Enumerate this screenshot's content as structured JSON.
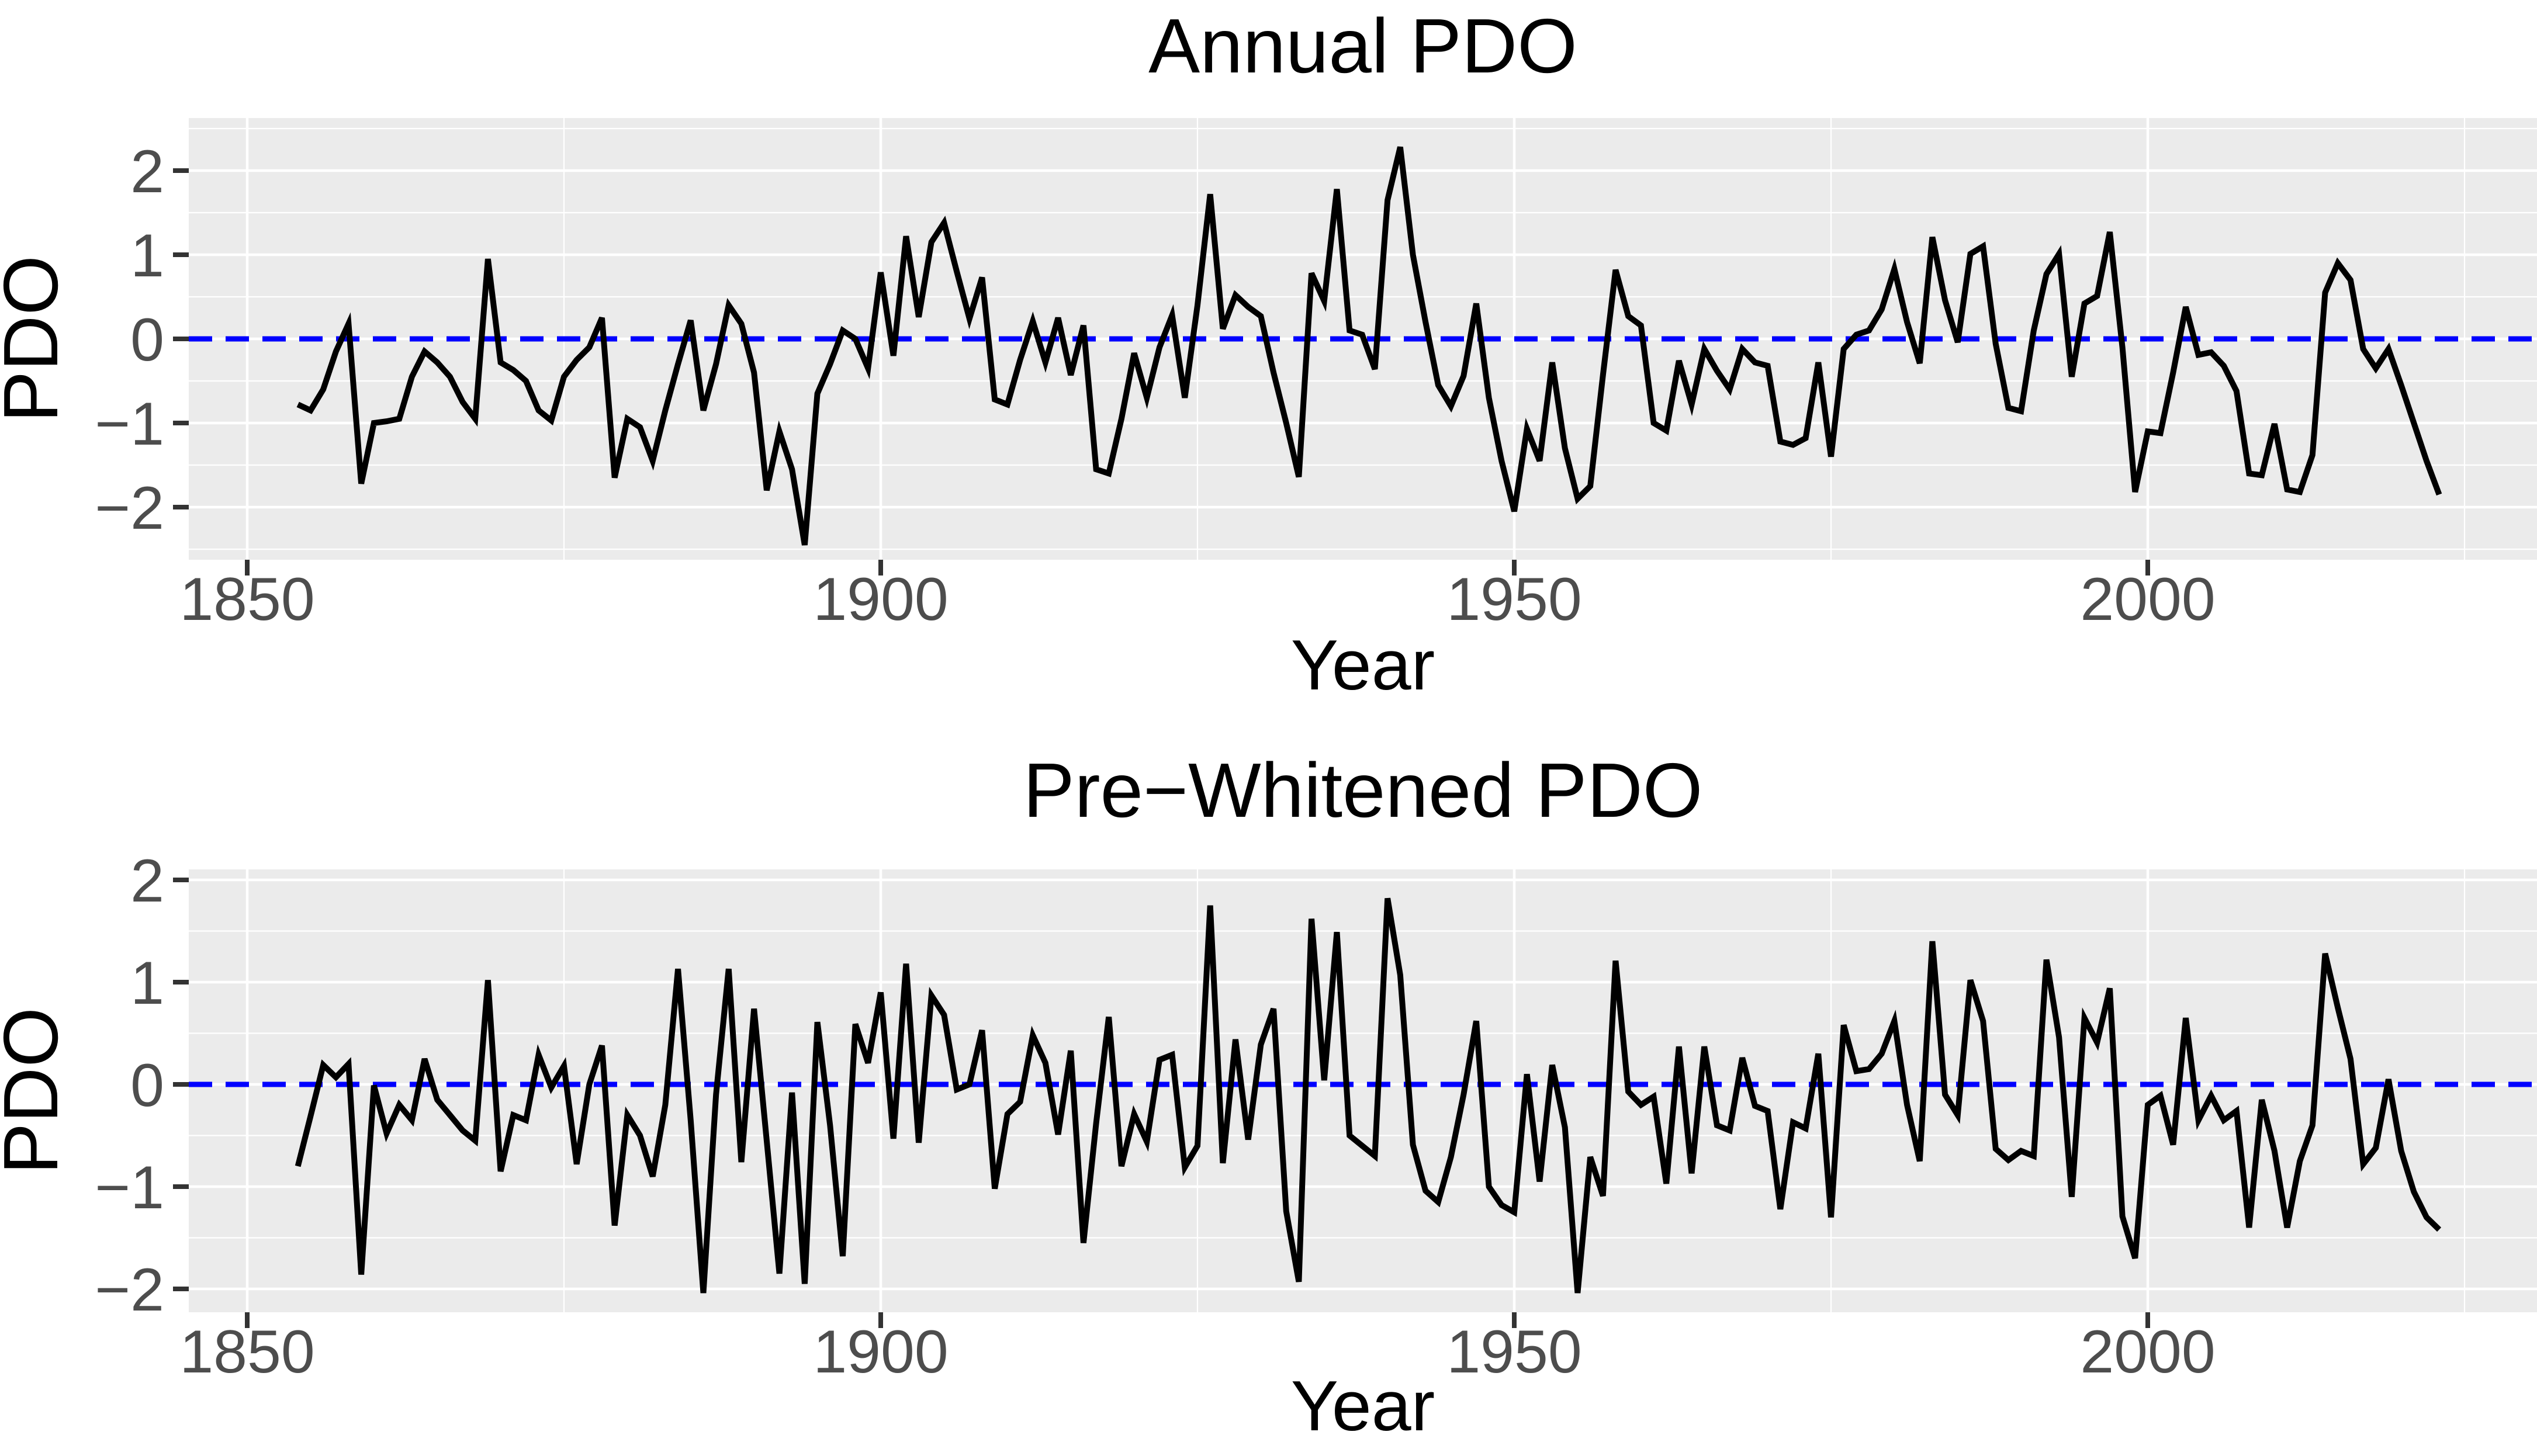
{
  "page": {
    "background": "#FFFFFF",
    "description": "Two stacked ggplot-style time series panels of the Pacific Decadal Oscillation index"
  },
  "chart_data": [
    {
      "type": "line",
      "title": "Annual PDO",
      "xlabel": "Year",
      "ylabel": "PDO",
      "x_first": 1854,
      "x_step": 1,
      "x_ticks": [
        1850,
        1900,
        1950,
        2000
      ],
      "x_tick_labels": [
        "1850",
        "1900",
        "1950",
        "2000"
      ],
      "x_minor_ticks": [
        1875,
        1925,
        1975,
        2025
      ],
      "y_ticks": [
        2,
        1,
        0,
        -1,
        -2
      ],
      "y_tick_labels": [
        "2",
        "1",
        "0",
        "−1",
        "−2"
      ],
      "xlim": [
        1845.5,
        2031.5
      ],
      "ylim": [
        -2.63,
        2.63
      ],
      "grid": true,
      "legend_position": "none",
      "line_color": "#000000",
      "zero_line_color": "#0000FF",
      "zero_line_style": "dashed",
      "panel_bg": "#EBEBEB",
      "grid_color": "#FFFFFF",
      "tick_color": "#333333",
      "tick_label_color": "#4D4D4D",
      "values": [
        -0.78,
        -0.85,
        -0.6,
        -0.15,
        0.18,
        -1.72,
        -1.0,
        -0.98,
        -0.95,
        -0.45,
        -0.15,
        -0.28,
        -0.45,
        -0.75,
        -0.95,
        0.95,
        -0.28,
        -0.37,
        -0.5,
        -0.85,
        -0.97,
        -0.45,
        -0.25,
        -0.1,
        0.25,
        -1.65,
        -0.95,
        -1.05,
        -1.45,
        -0.85,
        -0.3,
        0.22,
        -0.85,
        -0.3,
        0.4,
        0.18,
        -0.4,
        -1.8,
        -1.1,
        -1.55,
        -2.45,
        -0.65,
        -0.3,
        0.1,
        0.0,
        -0.35,
        0.79,
        -0.2,
        1.22,
        0.26,
        1.15,
        1.38,
        0.8,
        0.24,
        0.73,
        -0.72,
        -0.78,
        -0.25,
        0.21,
        -0.28,
        0.25,
        -0.43,
        0.16,
        -1.55,
        -1.6,
        -0.95,
        -0.17,
        -0.7,
        -0.1,
        0.28,
        -0.7,
        0.4,
        1.72,
        0.12,
        0.52,
        0.38,
        0.27,
        -0.4,
        -1.0,
        -1.64,
        0.78,
        0.45,
        1.78,
        0.1,
        0.05,
        -0.36,
        1.65,
        2.28,
        1.0,
        0.2,
        -0.55,
        -0.8,
        -0.44,
        0.42,
        -0.7,
        -1.45,
        -2.05,
        -1.07,
        -1.45,
        -0.28,
        -1.3,
        -1.9,
        -1.75,
        -0.43,
        0.82,
        0.27,
        0.16,
        -1.0,
        -1.09,
        -0.26,
        -0.78,
        -0.12,
        -0.38,
        -0.6,
        -0.12,
        -0.28,
        -0.32,
        -1.22,
        -1.26,
        -1.18,
        -0.28,
        -1.4,
        -0.12,
        0.05,
        0.1,
        0.35,
        0.83,
        0.2,
        -0.29,
        1.21,
        0.46,
        -0.04,
        1.01,
        1.1,
        -0.06,
        -0.82,
        -0.86,
        0.1,
        0.77,
        1.01,
        -0.45,
        0.42,
        0.51,
        1.27,
        -0.1,
        -1.82,
        -1.1,
        -1.12,
        -0.4,
        0.38,
        -0.19,
        -0.16,
        -0.32,
        -0.62,
        -1.6,
        -1.62,
        -1.01,
        -1.79,
        -1.82,
        -1.38,
        0.55,
        0.9,
        0.7,
        -0.12,
        -0.35,
        -0.12,
        -0.55,
        -1.0,
        -1.45,
        -1.85
      ]
    },
    {
      "type": "line",
      "title": "Pre−Whitened PDO",
      "xlabel": "Year",
      "ylabel": "PDO",
      "x_first": 1854,
      "x_step": 1,
      "x_ticks": [
        1850,
        1900,
        1950,
        2000
      ],
      "x_tick_labels": [
        "1850",
        "1900",
        "1950",
        "2000"
      ],
      "x_minor_ticks": [
        1875,
        1925,
        1975,
        2025
      ],
      "y_ticks": [
        2,
        1,
        0,
        -1,
        -2
      ],
      "y_tick_labels": [
        "2",
        "1",
        "0",
        "−1",
        "−2"
      ],
      "xlim": [
        1845.5,
        2031.5
      ],
      "ylim": [
        -2.23,
        2.1
      ],
      "grid": true,
      "legend_position": "none",
      "line_color": "#000000",
      "zero_line_color": "#0000FF",
      "zero_line_style": "dashed",
      "panel_bg": "#EBEBEB",
      "grid_color": "#FFFFFF",
      "tick_color": "#333333",
      "tick_label_color": "#4D4D4D",
      "values": [
        -0.8,
        -0.31,
        0.19,
        0.07,
        0.2,
        -1.86,
        -0.01,
        -0.48,
        -0.2,
        -0.35,
        0.25,
        -0.15,
        -0.3,
        -0.45,
        -0.55,
        1.02,
        -0.85,
        -0.3,
        -0.35,
        0.29,
        -0.03,
        0.18,
        -0.78,
        0.0,
        0.38,
        -1.38,
        -0.3,
        -0.5,
        -0.9,
        -0.2,
        1.13,
        -0.35,
        -2.04,
        -0.1,
        1.13,
        -0.76,
        0.74,
        -0.55,
        -1.85,
        -0.08,
        -1.95,
        0.61,
        -0.4,
        -1.68,
        0.59,
        0.21,
        0.9,
        -0.53,
        1.18,
        -0.57,
        0.87,
        0.68,
        -0.05,
        0.0,
        0.53,
        -1.02,
        -0.29,
        -0.17,
        0.48,
        0.21,
        -0.49,
        0.33,
        -1.55,
        -0.38,
        0.66,
        -0.8,
        -0.29,
        -0.56,
        0.24,
        0.29,
        -0.81,
        -0.6,
        1.75,
        -0.77,
        0.44,
        -0.54,
        0.39,
        0.74,
        -1.24,
        -1.93,
        1.62,
        0.04,
        1.49,
        -0.5,
        -0.6,
        -0.7,
        1.82,
        1.07,
        -0.59,
        -1.04,
        -1.15,
        -0.71,
        -0.1,
        0.62,
        -1.0,
        -1.18,
        -1.25,
        0.1,
        -0.95,
        0.19,
        -0.42,
        -2.04,
        -0.71,
        -1.09,
        1.21,
        -0.07,
        -0.2,
        -0.12,
        -0.97,
        0.37,
        -0.87,
        0.37,
        -0.4,
        -0.45,
        0.26,
        -0.21,
        -0.26,
        -1.22,
        -0.37,
        -0.43,
        0.3,
        -1.3,
        0.58,
        0.13,
        0.15,
        0.3,
        0.62,
        -0.2,
        -0.75,
        1.4,
        -0.1,
        -0.3,
        1.02,
        0.62,
        -0.63,
        -0.74,
        -0.65,
        -0.7,
        1.22,
        0.46,
        -1.1,
        0.65,
        0.41,
        0.94,
        -1.29,
        -1.7,
        -0.2,
        -0.11,
        -0.59,
        0.65,
        -0.35,
        -0.11,
        -0.35,
        -0.26,
        -1.4,
        -0.15,
        -0.65,
        -1.4,
        -0.75,
        -0.4,
        1.28,
        0.75,
        0.25,
        -0.78,
        -0.62,
        0.05,
        -0.65,
        -1.05,
        -1.3,
        -1.42
      ]
    }
  ]
}
